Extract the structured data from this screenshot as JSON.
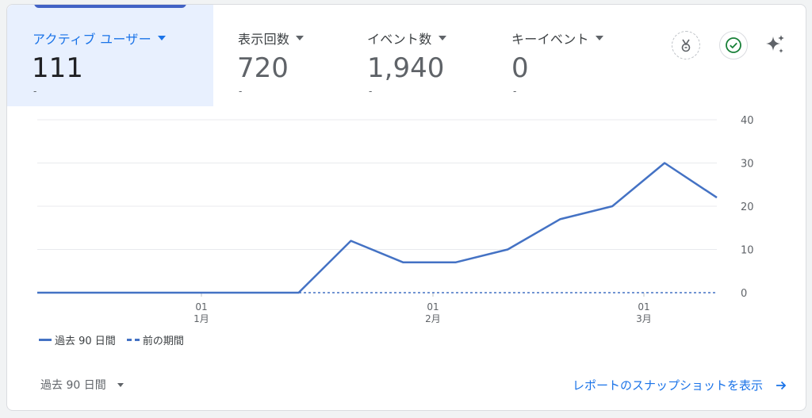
{
  "metrics": [
    {
      "label": "アクティブ ユーザー",
      "value": "111",
      "change": "-"
    },
    {
      "label": "表示回数",
      "value": "720",
      "change": "-"
    },
    {
      "label": "イベント数",
      "value": "1,940",
      "change": "-"
    },
    {
      "label": "キーイベント",
      "value": "0",
      "change": "-"
    }
  ],
  "icons": {
    "insights": "insights-badge-icon",
    "status": "check-circle-icon",
    "ai": "sparkle-icon"
  },
  "colors": {
    "accent": "#1a73e8",
    "series": "#4472c4",
    "selected_bg": "#e8f0fe",
    "selected_bar": "#4262c5",
    "check": "#188038"
  },
  "chart_data": {
    "type": "line",
    "ylim": [
      0,
      40
    ],
    "yticks": [
      "0",
      "10",
      "20",
      "30",
      "40"
    ],
    "xticks": [
      {
        "day": "01",
        "month": "1月"
      },
      {
        "day": "01",
        "month": "2月"
      },
      {
        "day": "01",
        "month": "3月"
      }
    ],
    "series": [
      {
        "name": "過去 90 日間",
        "style": "solid",
        "values": [
          0,
          0,
          0,
          0,
          0,
          0,
          12,
          7,
          7,
          10,
          17,
          20,
          30,
          22
        ]
      },
      {
        "name": "前の期間",
        "style": "dashed",
        "values": [
          0,
          0,
          0,
          0,
          0,
          0,
          0,
          0,
          0,
          0,
          0,
          0,
          0,
          0
        ]
      }
    ],
    "grid": true
  },
  "footer": {
    "date_range": "過去 90 日間",
    "snapshot_link": "レポートのスナップショットを表示"
  }
}
